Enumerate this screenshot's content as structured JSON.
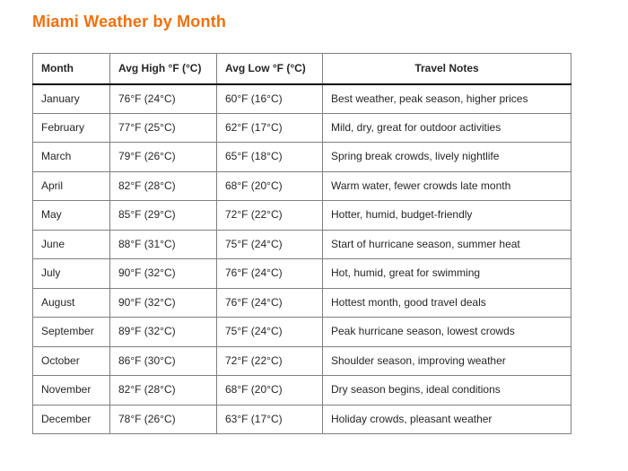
{
  "page": {
    "title": "Miami Weather by Month"
  },
  "colors": {
    "title_orange": "#f2700c",
    "body_text": "#262626",
    "grid_border": "#7f7f7f",
    "outer_border": "#595959",
    "header_rule": "#000000",
    "background": "#ffffff"
  },
  "table": {
    "headers": [
      "Month",
      "Avg High °F (°C)",
      "Avg Low °F (°C)",
      "Travel Notes"
    ],
    "rows": [
      {
        "month": "January",
        "avg_high": "76°F (24°C)",
        "avg_low": "60°F (16°C)",
        "notes": "Best weather, peak season, higher prices"
      },
      {
        "month": "February",
        "avg_high": "77°F (25°C)",
        "avg_low": "62°F (17°C)",
        "notes": "Mild, dry, great for outdoor activities"
      },
      {
        "month": "March",
        "avg_high": "79°F (26°C)",
        "avg_low": "65°F (18°C)",
        "notes": "Spring break crowds, lively nightlife"
      },
      {
        "month": "April",
        "avg_high": "82°F (28°C)",
        "avg_low": "68°F (20°C)",
        "notes": "Warm water, fewer crowds late month"
      },
      {
        "month": "May",
        "avg_high": "85°F (29°C)",
        "avg_low": "72°F (22°C)",
        "notes": "Hotter, humid, budget-friendly"
      },
      {
        "month": "June",
        "avg_high": "88°F (31°C)",
        "avg_low": "75°F (24°C)",
        "notes": "Start of hurricane season, summer heat"
      },
      {
        "month": "July",
        "avg_high": "90°F (32°C)",
        "avg_low": "76°F (24°C)",
        "notes": "Hot, humid, great for swimming"
      },
      {
        "month": "August",
        "avg_high": "90°F (32°C)",
        "avg_low": "76°F (24°C)",
        "notes": "Hottest month, good travel deals"
      },
      {
        "month": "September",
        "avg_high": "89°F (32°C)",
        "avg_low": "75°F (24°C)",
        "notes": "Peak hurricane season, lowest crowds"
      },
      {
        "month": "October",
        "avg_high": "86°F (30°C)",
        "avg_low": "72°F (22°C)",
        "notes": "Shoulder season, improving weather"
      },
      {
        "month": "November",
        "avg_high": "82°F (28°C)",
        "avg_low": "68°F (20°C)",
        "notes": "Dry season begins, ideal conditions"
      },
      {
        "month": "December",
        "avg_high": "78°F (26°C)",
        "avg_low": "63°F (17°C)",
        "notes": "Holiday crowds, pleasant weather"
      }
    ]
  }
}
